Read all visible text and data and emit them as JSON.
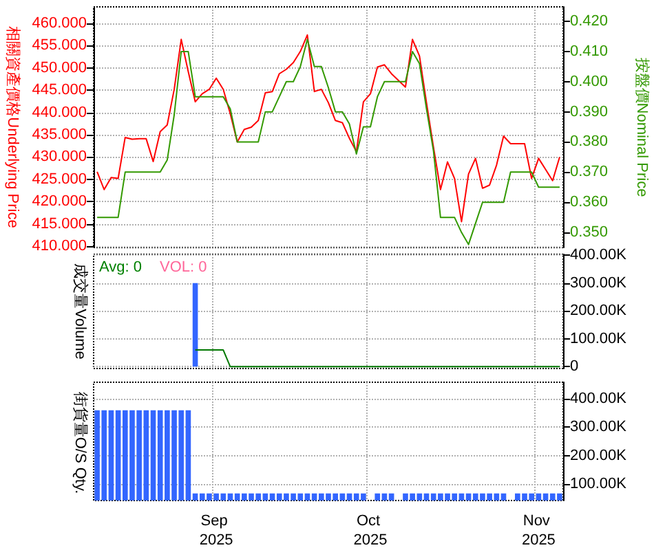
{
  "chart_data": [
    {
      "type": "line",
      "ylabel": "相關資產價格Underlying Price",
      "y2label": "按盤價Nominal Price",
      "tick_labels": "y",
      "grid": true,
      "categories": [
        null,
        null,
        null,
        null,
        null,
        null,
        null,
        null,
        null,
        null,
        null,
        null,
        null,
        null,
        null,
        null,
        null,
        "Sep 2025",
        null,
        null,
        null,
        null,
        null,
        null,
        null,
        null,
        null,
        null,
        null,
        null,
        null,
        null,
        null,
        null,
        null,
        null,
        null,
        null,
        null,
        "Oct 2025",
        null,
        null,
        null,
        null,
        null,
        null,
        null,
        null,
        null,
        null,
        null,
        null,
        null,
        null,
        null,
        null,
        null,
        null,
        null,
        null,
        null,
        null,
        null,
        "Nov 2025",
        null,
        null,
        null
      ],
      "ylim": [
        409.7,
        463.7
      ],
      "yticks": [
        {
          "value": 410,
          "label": "410.000"
        },
        {
          "value": 415,
          "label": "415.000"
        },
        {
          "value": 420,
          "label": "420.000"
        },
        {
          "value": 425,
          "label": "425.000"
        },
        {
          "value": 430,
          "label": "430.000"
        },
        {
          "value": 435,
          "label": "435.000"
        },
        {
          "value": 440,
          "label": "440.000"
        },
        {
          "value": 445,
          "label": "445.000"
        },
        {
          "value": 450,
          "label": "450.000"
        },
        {
          "value": 455,
          "label": "455.000"
        },
        {
          "value": 460,
          "label": "460.000"
        }
      ],
      "y2lim": [
        0.345,
        0.4248
      ],
      "y2ticks": [
        {
          "value": 0.35,
          "label": "0.350"
        },
        {
          "value": 0.36,
          "label": "0.360"
        },
        {
          "value": 0.37,
          "label": "0.370"
        },
        {
          "value": 0.38,
          "label": "0.380"
        },
        {
          "value": 0.39,
          "label": "0.390"
        },
        {
          "value": 0.4,
          "label": "0.400"
        },
        {
          "value": 0.41,
          "label": "0.410"
        },
        {
          "value": 0.42,
          "label": "0.420"
        }
      ],
      "series": [
        {
          "color": "#ff0000",
          "values": [
            426.7,
            422.7,
            425.4,
            425.2,
            434.4,
            434,
            434.1,
            434.1,
            429,
            435.7,
            437.2,
            445.2,
            456.4,
            449.2,
            442.4,
            444.2,
            445.2,
            447.7,
            445.2,
            439.7,
            433.4,
            436.2,
            436.7,
            438.2,
            444.4,
            444.7,
            448.7,
            449.7,
            451.2,
            453.7,
            457.4,
            444.7,
            445.2,
            442.2,
            438.2,
            437.7,
            434.2,
            431.2,
            442.4,
            444.2,
            450.2,
            450.7,
            448.7,
            447.2,
            445.7,
            456.4,
            452.7,
            442.2,
            432.2,
            422.7,
            428.9,
            425.2,
            415.5,
            426.2,
            429.7,
            423,
            423.7,
            428.2,
            434.7,
            433,
            433,
            433,
            425.2,
            429.7,
            427.2,
            424.7,
            430
          ]
        },
        {
          "color": "#339900",
          "axis": "y2",
          "values": [
            0.355,
            0.355,
            0.355,
            0.355,
            0.37,
            0.37,
            0.37,
            0.37,
            0.37,
            0.37,
            0.374,
            0.389,
            0.41,
            0.41,
            0.395,
            0.395,
            0.395,
            0.395,
            0.395,
            0.391,
            0.38,
            0.38,
            0.38,
            0.38,
            0.39,
            0.39,
            0.395,
            0.4,
            0.4,
            0.405,
            0.414,
            0.405,
            0.405,
            0.398,
            0.39,
            0.39,
            0.386,
            0.376,
            0.385,
            0.385,
            0.395,
            0.4,
            0.4,
            0.4,
            0.4,
            0.41,
            0.406,
            0.391,
            0.377,
            0.355,
            0.355,
            0.355,
            0.35,
            0.346,
            0.353,
            0.36,
            0.36,
            0.36,
            0.36,
            0.37,
            0.37,
            0.37,
            0.37,
            0.365,
            0.365,
            0.365,
            0.365
          ]
        }
      ]
    },
    {
      "type": "bar",
      "ylabel": "成交量Volume",
      "tick_labels": "y",
      "grid": true,
      "annotations": [
        "Avg: 0",
        "VOL: 0"
      ],
      "categories": [
        null,
        null,
        null,
        null,
        null,
        null,
        null,
        null,
        null,
        null,
        null,
        null,
        null,
        null,
        null,
        null,
        null,
        "Sep 2025",
        null,
        null,
        null,
        null,
        null,
        null,
        null,
        null,
        null,
        null,
        null,
        null,
        null,
        null,
        null,
        null,
        null,
        null,
        null,
        null,
        null,
        "Oct 2025",
        null,
        null,
        null,
        null,
        null,
        null,
        null,
        null,
        null,
        null,
        null,
        null,
        null,
        null,
        null,
        null,
        null,
        null,
        null,
        null,
        null,
        null,
        null,
        "Nov 2025",
        null,
        null,
        null
      ],
      "ylim": [
        -6500,
        403000
      ],
      "yticks": [
        0,
        {
          "value": 100000,
          "label": "100.00K"
        },
        {
          "value": 200000,
          "label": "200.00K"
        },
        {
          "value": 300000,
          "label": "300.00K"
        },
        {
          "value": 400000,
          "label": "400.00K"
        }
      ],
      "series": [
        {
          "color": "#3366ff",
          "values": [
            null,
            null,
            null,
            null,
            null,
            null,
            null,
            null,
            null,
            null,
            null,
            null,
            null,
            null,
            300000,
            null,
            null,
            null,
            null,
            null,
            null,
            null,
            null,
            null,
            null,
            null,
            null,
            null,
            null,
            null,
            null,
            null,
            null,
            null,
            null,
            null,
            null,
            null,
            null,
            null,
            null,
            null,
            null,
            null,
            null,
            null,
            null,
            null,
            null,
            null,
            null,
            null,
            null,
            null,
            null,
            null,
            null,
            null,
            null,
            null,
            null,
            null,
            null,
            null,
            null,
            null,
            null
          ]
        },
        {
          "type": "line",
          "color": "#007700",
          "values": [
            null,
            null,
            null,
            null,
            null,
            null,
            null,
            null,
            null,
            null,
            null,
            null,
            null,
            null,
            60000,
            60000,
            60000,
            60000,
            60000,
            0,
            0,
            0,
            0,
            0,
            0,
            0,
            0,
            0,
            0,
            0,
            0,
            0,
            0,
            0,
            0,
            0,
            0,
            0,
            0,
            0,
            0,
            0,
            0,
            0,
            0,
            0,
            0,
            0,
            0,
            0,
            0,
            0,
            0,
            0,
            0,
            0,
            0,
            0,
            0,
            0,
            0,
            0,
            0,
            0,
            0,
            0,
            0
          ]
        }
      ]
    },
    {
      "type": "bar",
      "ylabel": "街貨量O/S Qty.",
      "grid": true,
      "categories": [
        null,
        null,
        null,
        null,
        null,
        null,
        null,
        null,
        null,
        null,
        null,
        null,
        null,
        null,
        null,
        null,
        null,
        "Sep 2025",
        null,
        null,
        null,
        null,
        null,
        null,
        null,
        null,
        null,
        null,
        null,
        null,
        null,
        null,
        null,
        null,
        null,
        null,
        null,
        null,
        null,
        "Oct 2025",
        null,
        null,
        null,
        null,
        null,
        null,
        null,
        null,
        null,
        null,
        null,
        null,
        null,
        null,
        null,
        null,
        null,
        null,
        null,
        null,
        null,
        null,
        null,
        "Nov 2025",
        null,
        null,
        null
      ],
      "ylim": [
        41000,
        459000
      ],
      "yticks": [
        {
          "value": 100000,
          "label": "100.00K"
        },
        {
          "value": 200000,
          "label": "200.00K"
        },
        {
          "value": 300000,
          "label": "300.00K"
        },
        {
          "value": 400000,
          "label": "400.00K"
        }
      ],
      "series": [
        {
          "color": "#3366ff",
          "values": [
            360000,
            360000,
            360000,
            360000,
            360000,
            360000,
            360000,
            360000,
            360000,
            360000,
            360000,
            360000,
            360000,
            360000,
            66000,
            66000,
            66000,
            66000,
            66000,
            66000,
            66000,
            66000,
            66000,
            66000,
            66000,
            66000,
            66000,
            66000,
            66000,
            66000,
            66000,
            66000,
            66000,
            66000,
            66000,
            66000,
            66000,
            66000,
            66000,
            null,
            66000,
            66000,
            66000,
            null,
            66000,
            66000,
            66000,
            66000,
            66000,
            66000,
            66000,
            66000,
            66000,
            66000,
            66000,
            66000,
            66000,
            66000,
            66000,
            null,
            66000,
            66000,
            66000,
            66000,
            66000,
            66000,
            66000
          ]
        }
      ]
    }
  ]
}
